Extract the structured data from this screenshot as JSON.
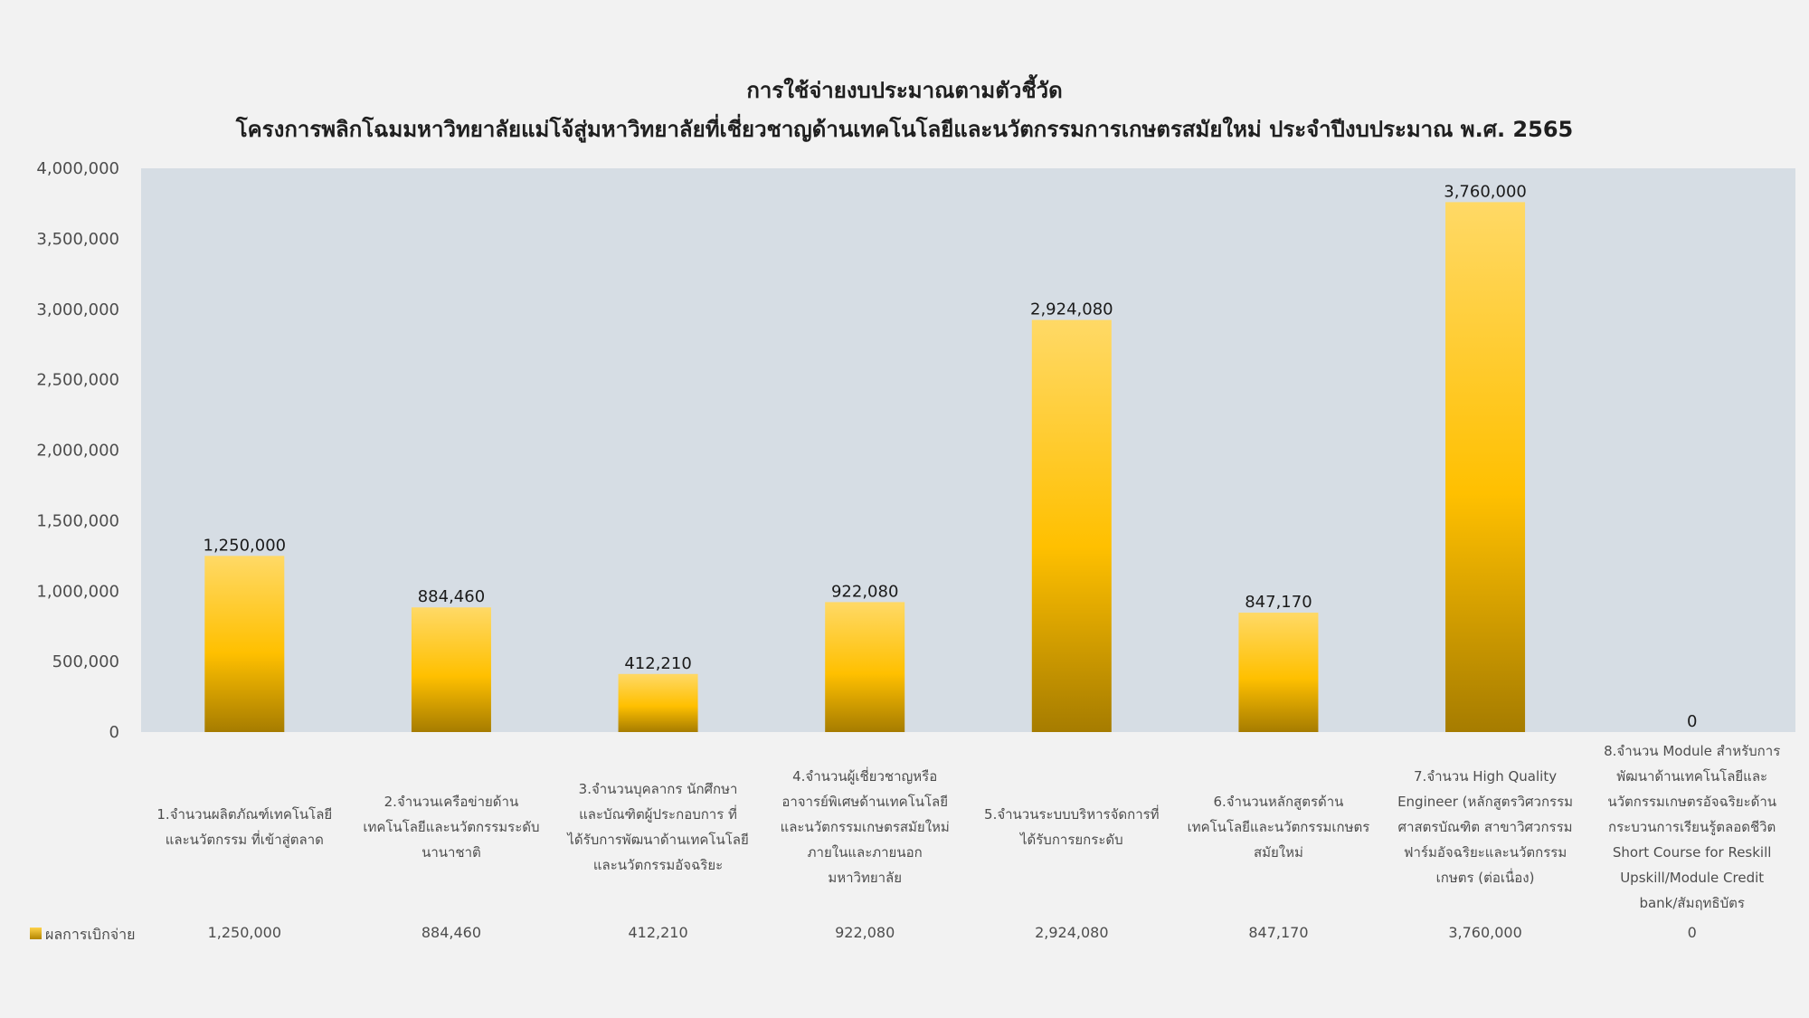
{
  "chart_data": {
    "type": "bar",
    "title_line1": "การใช้จ่ายงบประมาณตามตัวชี้วัด",
    "title_line2": "โครงการพลิกโฉมมหาวิทยาลัยแม่โจ้สู่มหาวิทยาลัยที่เชี่ยวชาญด้านเทคโนโลยีและนวัตกรรมการเกษตรสมัยใหม่ ประจำปีงบประมาณ พ.ศ. 2565",
    "categories": [
      "1.จำนวนผลิตภัณฑ์เทคโนโลยีและนวัตกรรม ที่เข้าสู่ตลาด",
      "2.จำนวนเครือข่ายด้านเทคโนโลยีและนวัตกรรมระดับนานาชาติ",
      "3.จำนวนบุคลากร นักศึกษา และบัณฑิตผู้ประกอบการ ที่ได้รับการพัฒนาด้านเทคโนโลยีและนวัตกรรมอัจฉริยะ",
      "4.จำนวนผู้เชี่ยวชาญหรืออาจารย์พิเศษด้านเทคโนโลยีและนวัตกรรมเกษตรสมัยใหม่ ภายในและภายนอกมหาวิทยาลัย",
      "5.จำนวนระบบบริหารจัดการที่ได้รับการยกระดับ",
      "6.จำนวนหลักสูตรด้านเทคโนโลยีและนวัตกรรมเกษตรสมัยใหม่",
      "7.จำนวน High Quality Engineer (หลักสูตรวิศวกรรมศาสตรบัณฑิต สาขาวิศวกรรมฟาร์มอัจฉริยะและนวัตกรรมเกษตร (ต่อเนื่อง)",
      "8.จำนวน Module สำหรับการพัฒนาด้านเทคโนโลยีและนวัตกรรมเกษตรอัจฉริยะด้านกระบวนการเรียนรู้ตลอดชีวิต Short Course for Reskill Upskill/Module Credit bank/สัมฤทธิบัตร"
    ],
    "category_lines": [
      [
        "1.จำนวนผลิตภัณฑ์เทคโนโลยี",
        "และนวัตกรรม ที่เข้าสู่ตลาด"
      ],
      [
        "2.จำนวนเครือข่ายด้าน",
        "เทคโนโลยีและนวัตกรรมระดับ",
        "นานาชาติ"
      ],
      [
        "3.จำนวนบุคลากร นักศึกษา",
        "และบัณฑิตผู้ประกอบการ ที่",
        "ได้รับการพัฒนาด้านเทคโนโลยี",
        "และนวัตกรรมอัจฉริยะ"
      ],
      [
        "4.จำนวนผู้เชี่ยวชาญหรือ",
        "อาจารย์พิเศษด้านเทคโนโลยี",
        "และนวัตกรรมเกษตรสมัยใหม่",
        "ภายในและภายนอก",
        "มหาวิทยาลัย"
      ],
      [
        "5.จำนวนระบบบริหารจัดการที่",
        "ได้รับการยกระดับ"
      ],
      [
        "6.จำนวนหลักสูตรด้าน",
        "เทคโนโลยีและนวัตกรรมเกษตร",
        "สมัยใหม่"
      ],
      [
        "7.จำนวน High Quality",
        "Engineer (หลักสูตรวิศวกรรม",
        "ศาสตรบัณฑิต สาขาวิศวกรรม",
        "ฟาร์มอัจฉริยะและนวัตกรรม",
        "เกษตร (ต่อเนื่อง)"
      ],
      [
        "8.จำนวน Module สำหรับการ",
        "พัฒนาด้านเทคโนโลยีและ",
        "นวัตกรรมเกษตรอัจฉริยะด้าน",
        "กระบวนการเรียนรู้ตลอดชีวิต",
        "Short Course for Reskill",
        "Upskill/Module Credit",
        "bank/สัมฤทธิบัตร"
      ]
    ],
    "series": [
      {
        "name": "ผลการเบิกจ่าย",
        "values": [
          1250000,
          884460,
          412210,
          922080,
          2924080,
          847170,
          3760000,
          0
        ]
      }
    ],
    "data_labels": [
      "1,250,000",
      "884,460",
      "412,210",
      "922,080",
      "2,924,080",
      "847,170",
      "3,760,000",
      "0"
    ],
    "ylim": [
      0,
      4000000
    ],
    "yticks": [
      0,
      500000,
      1000000,
      1500000,
      2000000,
      2500000,
      3000000,
      3500000,
      4000000
    ],
    "ytick_labels": [
      "0",
      "500,000",
      "1,000,000",
      "1,500,000",
      "2,000,000",
      "2,500,000",
      "3,000,000",
      "3,500,000",
      "4,000,000"
    ],
    "data_table": true,
    "legend_label": "ผลการเบิกจ่าย",
    "colors": {
      "background": "#f2f2f2",
      "plot_area": "#d6dde4",
      "bar_top": "#ffd966",
      "bar_mid": "#ffc000",
      "bar_bottom": "#a67c00"
    }
  }
}
